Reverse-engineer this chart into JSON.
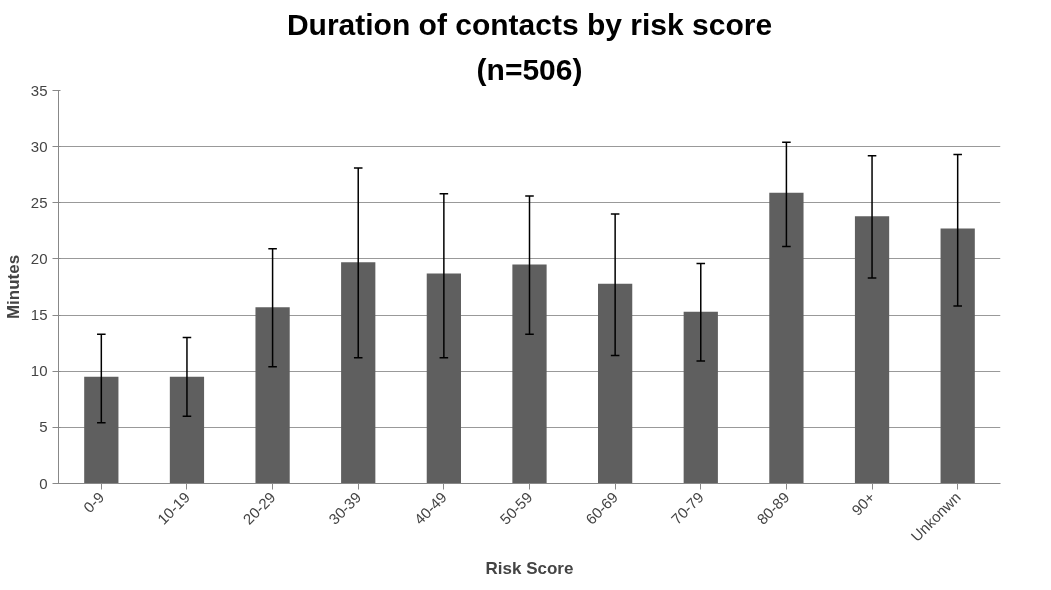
{
  "chart_data": {
    "type": "bar",
    "title": "Duration of contacts by risk score",
    "subtitle": "(n=506)",
    "xlabel": "Risk Score",
    "ylabel": "Minutes",
    "categories": [
      "0-9",
      "10-19",
      "20-29",
      "30-39",
      "40-49",
      "50-59",
      "60-69",
      "70-79",
      "80-89",
      "90+",
      "Unkonwn"
    ],
    "values": [
      9.5,
      9.5,
      15.7,
      19.7,
      18.7,
      19.5,
      17.8,
      15.3,
      25.9,
      23.8,
      22.7
    ],
    "errors": [
      [
        5.4,
        13.3
      ],
      [
        6.0,
        13.0
      ],
      [
        10.4,
        20.9
      ],
      [
        11.2,
        28.1
      ],
      [
        11.2,
        25.8
      ],
      [
        13.3,
        25.6
      ],
      [
        11.4,
        24.0
      ],
      [
        10.9,
        19.6
      ],
      [
        21.1,
        30.4
      ],
      [
        18.3,
        29.2
      ],
      [
        15.8,
        29.3
      ]
    ],
    "color": "#5f5f5f",
    "ylim": [
      0,
      35
    ],
    "yticks": [
      0,
      5,
      10,
      15,
      20,
      25,
      30,
      35
    ],
    "grid": "y"
  }
}
